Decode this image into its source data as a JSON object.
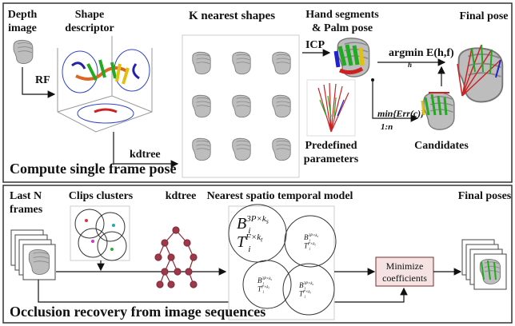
{
  "top": {
    "depth_image": [
      "Depth",
      "image"
    ],
    "shape_descriptor": [
      "Shape",
      "descriptor"
    ],
    "k_nearest": "K nearest shapes",
    "hand_segments": [
      "Hand segments",
      "& Palm pose"
    ],
    "final_pose": "Final pose",
    "rf": "RF",
    "kdtree": "kdtree",
    "icp": "ICP",
    "argmin": {
      "text": "argmin E(h,f)",
      "sub": "h"
    },
    "min_err": {
      "text": "min{Err(c)}",
      "sub": "1:n"
    },
    "predefined": [
      "Predefined",
      "parameters"
    ],
    "candidates": "Candidates",
    "section_title": "Compute single frame pose"
  },
  "bottom": {
    "last_frames": [
      "Last N",
      "frames"
    ],
    "clips_clusters": "Clips clusters",
    "kdtree": "kdtree",
    "nearest_model": "Nearest spatio temporal model",
    "final_poses": "Final poses",
    "minimize": [
      "Minimize",
      "coefficients"
    ],
    "model_terms": [
      {
        "base": "B",
        "sub": "i",
        "sup": "3P×k",
        "sup_sub": "s"
      },
      {
        "base": "T",
        "sub": "i",
        "sup": "F×k",
        "sup_sub": "t"
      }
    ],
    "section_title": "Occlusion recovery from image sequences"
  }
}
